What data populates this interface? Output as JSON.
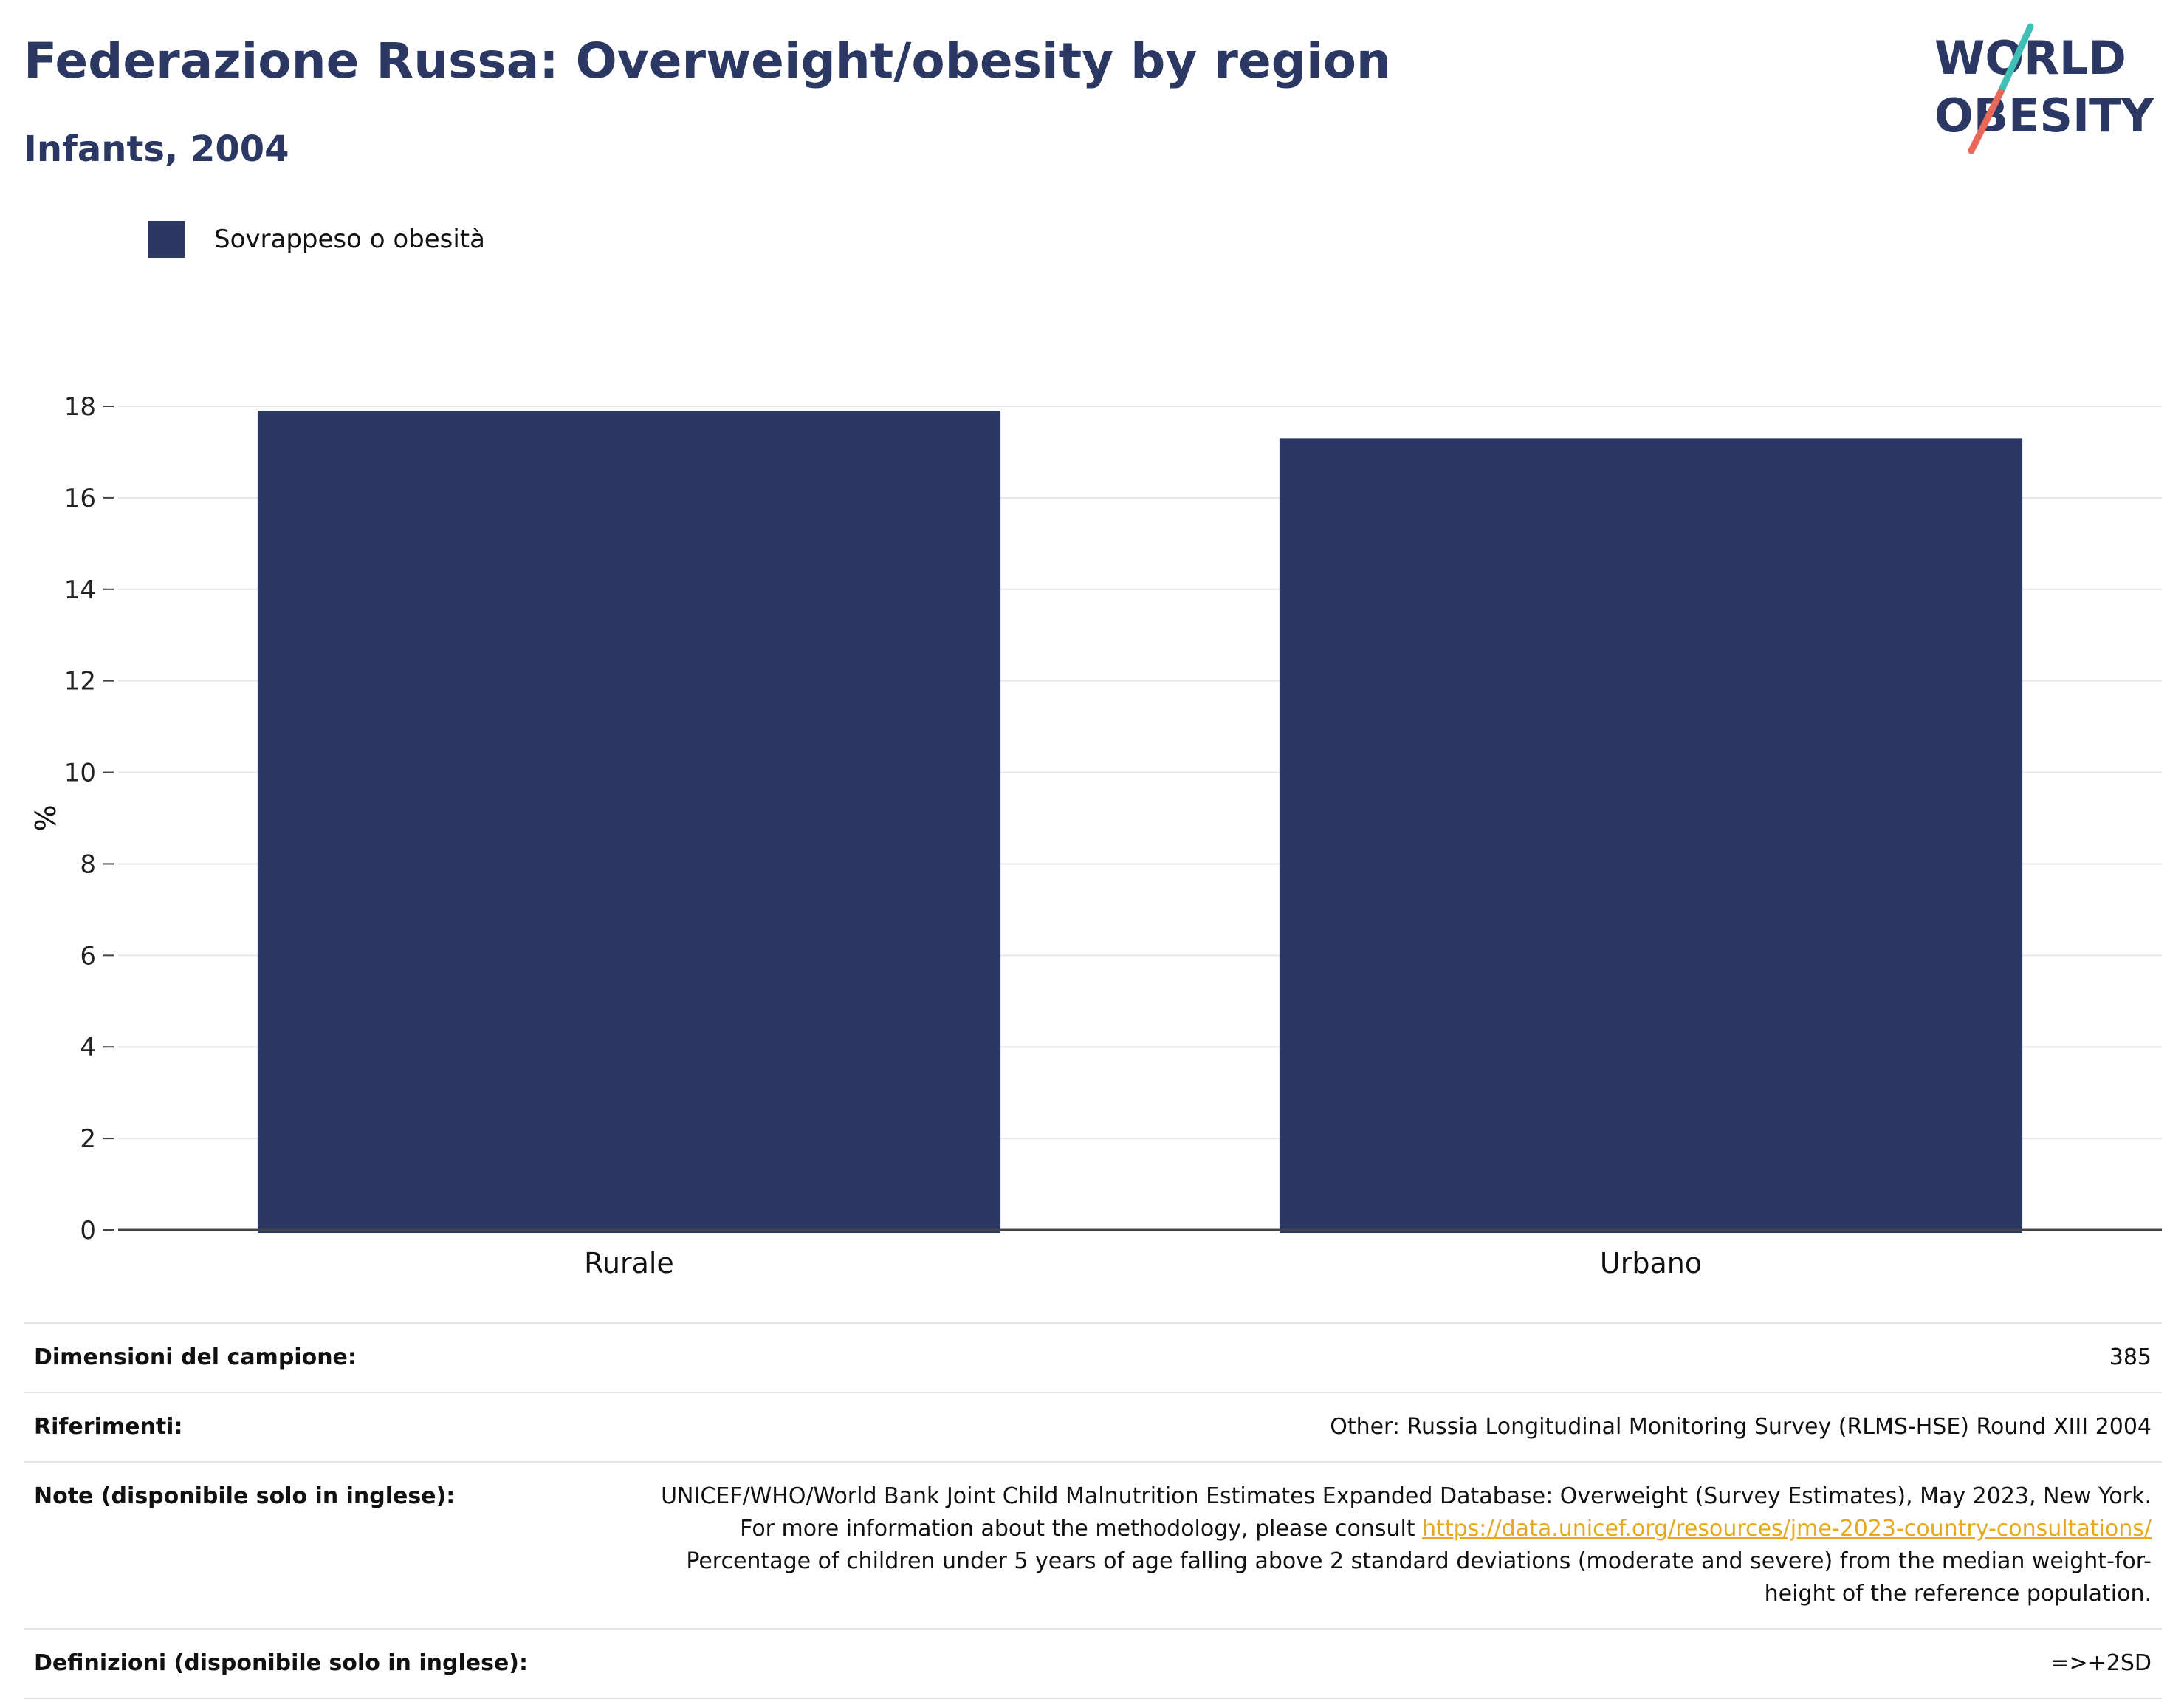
{
  "header": {
    "title": "Federazione Russa: Overweight/obesity by region",
    "subtitle": "Infants, 2004"
  },
  "logo": {
    "line1": "WORLD",
    "line2": "OBESITY",
    "colors": {
      "text": "#2b3863",
      "slash_top": "#3fbfb5",
      "slash_bottom": "#e8685a"
    }
  },
  "legend": {
    "items": [
      {
        "label": "Sovrappeso o obesità",
        "color": "#2b3863"
      }
    ]
  },
  "chart_data": {
    "type": "bar",
    "categories": [
      "Rurale",
      "Urbano"
    ],
    "series": [
      {
        "name": "Sovrappeso o obesità",
        "values": [
          17.9,
          17.3
        ],
        "color": "#2b3863"
      }
    ],
    "ylabel": "%",
    "xlabel": "",
    "ylim": [
      0,
      18
    ],
    "yticks": [
      0,
      2,
      4,
      6,
      8,
      10,
      12,
      14,
      16,
      18
    ],
    "grid": true,
    "legend_position": "top-left"
  },
  "info": {
    "sample": {
      "key": "Dimensioni del campione:",
      "value": "385"
    },
    "references": {
      "key": "Riferimenti:",
      "value": "Other: Russia Longitudinal Monitoring Survey (RLMS-HSE) Round XIII 2004"
    },
    "notes": {
      "key": "Note (disponibile solo in inglese):",
      "text_before": "UNICEF/WHO/World Bank Joint Child Malnutrition Estimates Expanded Database: Overweight (Survey Estimates), May 2023, New York. For more information about the methodology, please consult ",
      "link": "https://data.unicef.org/resources/jme-2023-country-consultations/",
      "text_after": "Percentage of children under 5 years of age falling above 2 standard deviations (moderate and severe) from the median weight-for-height of the reference population."
    },
    "definitions": {
      "key": "Definizioni (disponibile solo in inglese):",
      "value": "=>+2SD"
    }
  }
}
